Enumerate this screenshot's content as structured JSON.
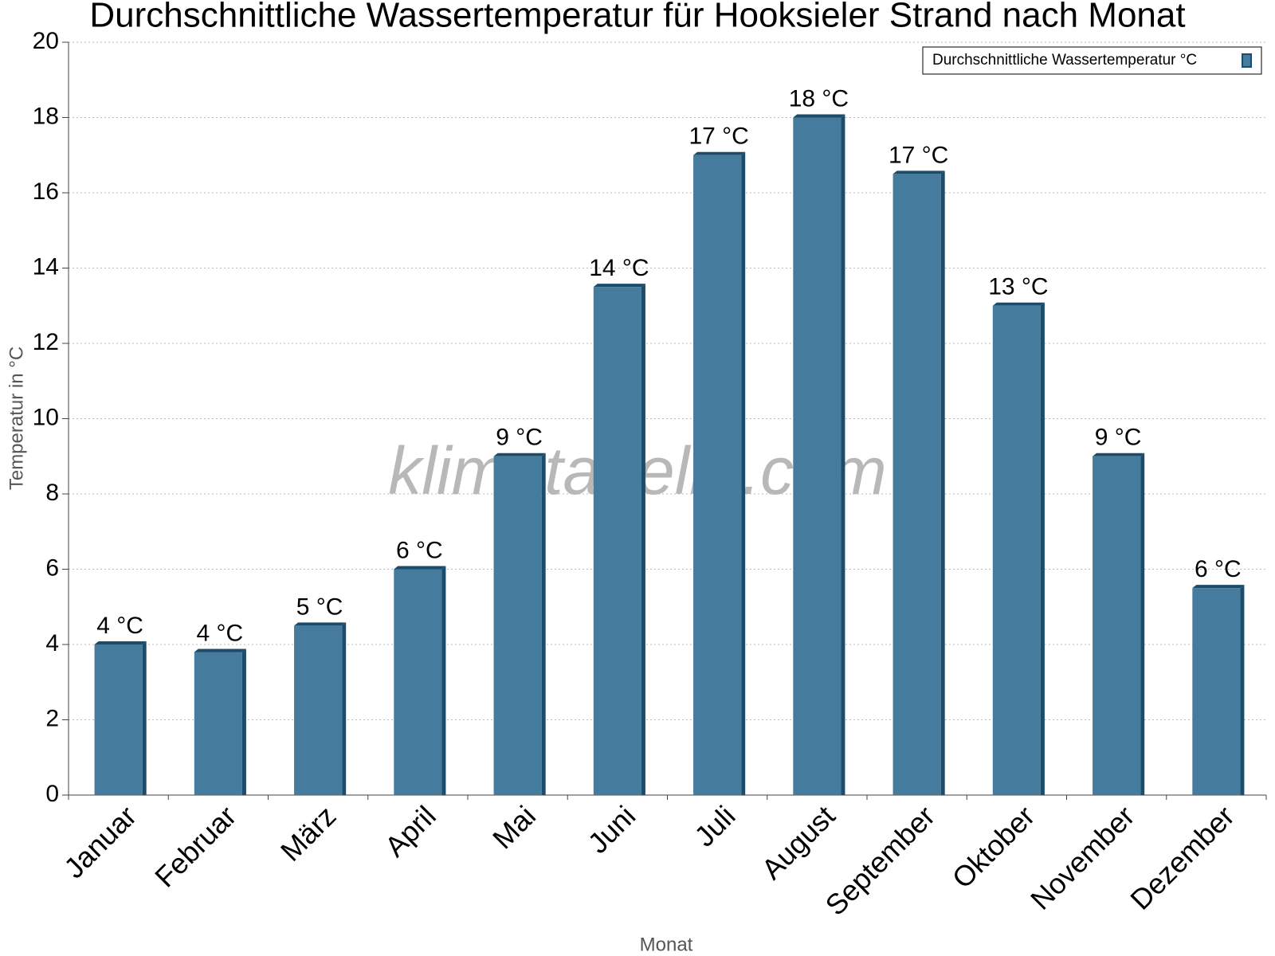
{
  "chart_data": {
    "type": "bar",
    "title": "Durchschnittliche Wassertemperatur für Hooksieler Strand nach Monat",
    "watermark": "klimatabelle.com",
    "x_label": "Monat",
    "y_label": "Temperatur in °C",
    "categories": [
      "Januar",
      "Februar",
      "März",
      "April",
      "Mai",
      "Juni",
      "Juli",
      "August",
      "September",
      "Oktober",
      "November",
      "Dezember"
    ],
    "series": [
      {
        "name": "Durchschnittliche Wassertemperatur °C",
        "color": "#457b9d",
        "values": [
          4.0,
          3.8,
          4.5,
          6.0,
          9.0,
          13.5,
          17.0,
          18.0,
          16.5,
          13.0,
          9.0,
          5.5
        ],
        "value_labels": [
          "4 °C",
          "4 °C",
          "5 °C",
          "6 °C",
          "9 °C",
          "14 °C",
          "17 °C",
          "18 °C",
          "17 °C",
          "13 °C",
          "9 °C",
          "6 °C"
        ]
      }
    ],
    "ylim": [
      0,
      20
    ],
    "yticks": [
      0,
      2,
      4,
      6,
      8,
      10,
      12,
      14,
      16,
      18,
      20
    ],
    "grid": true,
    "legend": "top-right"
  }
}
